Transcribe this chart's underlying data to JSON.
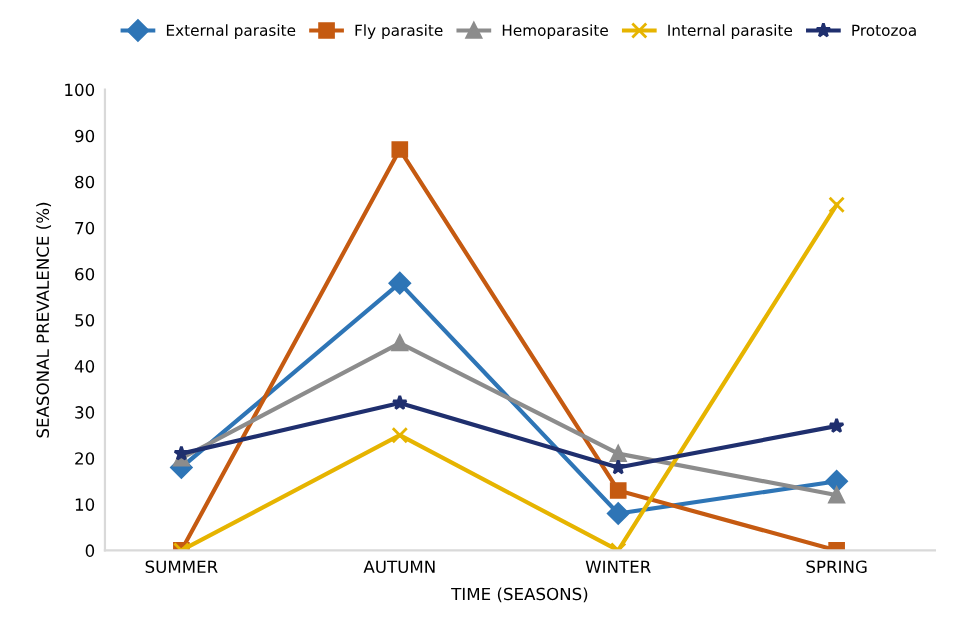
{
  "chart_data": {
    "type": "line",
    "xlabel": "TIME (SEASONS)",
    "ylabel": "SEASONAL PREVALENCE (%)",
    "categories": [
      "SUMMER",
      "AUTUMN",
      "WINTER",
      "SPRING"
    ],
    "series": [
      {
        "name": "External parasite",
        "color": "#2e75b6",
        "marker": "diamond",
        "values": [
          18,
          58,
          8,
          15
        ]
      },
      {
        "name": "Fly parasite",
        "color": "#c55a11",
        "marker": "square",
        "values": [
          0,
          87,
          13,
          0
        ]
      },
      {
        "name": "Hemoparasite",
        "color": "#8c8c8c",
        "marker": "triangle",
        "values": [
          20,
          45,
          21,
          12
        ]
      },
      {
        "name": "Internal parasite",
        "color": "#e6b400",
        "marker": "cross",
        "values": [
          0,
          25,
          0,
          75
        ]
      },
      {
        "name": "Protozoa",
        "color": "#1f2f6e",
        "marker": "star",
        "values": [
          21,
          32,
          18,
          27
        ]
      }
    ],
    "ylim": [
      0,
      100
    ],
    "yticks": [
      0,
      10,
      20,
      30,
      40,
      50,
      60,
      70,
      80,
      90,
      100
    ],
    "grid": false,
    "legend": "top",
    "line_style": "solid"
  }
}
